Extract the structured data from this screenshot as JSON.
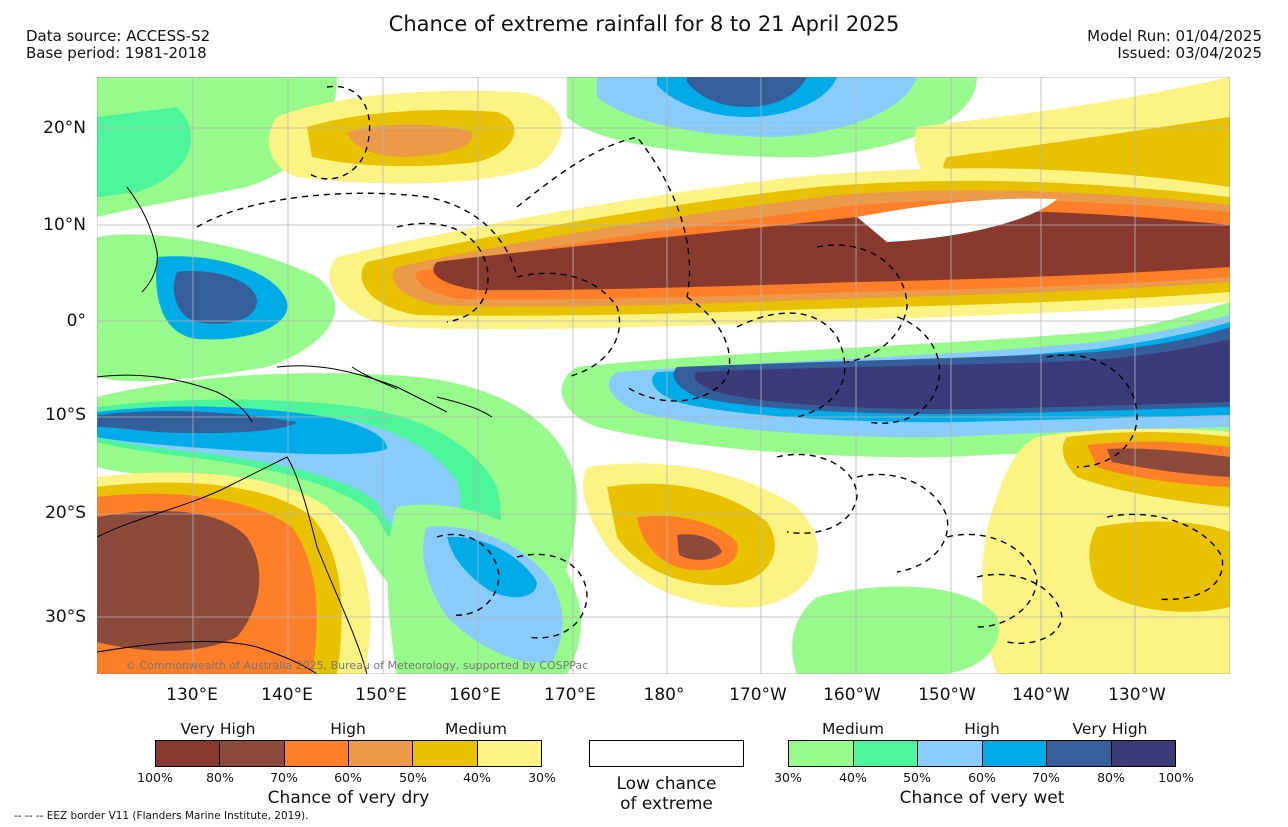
{
  "title": "Chance of extreme rainfall for 8 to 21 April 2025",
  "header_left": {
    "source": "Data source: ACCESS-S2",
    "base": "Base period: 1981-2018"
  },
  "header_right": {
    "run": "Model Run: 01/04/2025",
    "issued": "Issued: 03/04/2025"
  },
  "lat_labels": [
    "20°N",
    "10°N",
    "0°",
    "10°S",
    "20°S",
    "30°S"
  ],
  "lon_labels": [
    "130°E",
    "140°E",
    "150°E",
    "160°E",
    "170°E",
    "180°",
    "170°W",
    "160°W",
    "150°W",
    "140°W",
    "130°W"
  ],
  "copyright": "© Commonwealth of Australia 2025, Bureau of Meteorology, supported by COSPPac",
  "legend": {
    "dry": {
      "headings": [
        "Very High",
        "High",
        "Medium"
      ],
      "ticks": [
        "100%",
        "80%",
        "70%",
        "60%",
        "50%",
        "40%",
        "30%"
      ],
      "caption": "Chance of very dry",
      "colors": [
        "#893a2e",
        "#8c4a3b",
        "#fe7f28",
        "#eb9a4a",
        "#e8c200",
        "#fbf384"
      ]
    },
    "low": {
      "line1": "Low chance",
      "line2": "of extreme"
    },
    "wet": {
      "headings": [
        "Medium",
        "High",
        "Very High"
      ],
      "ticks": [
        "30%",
        "40%",
        "50%",
        "60%",
        "70%",
        "80%",
        "100%"
      ],
      "caption": "Chance of very wet",
      "colors": [
        "#97fb8b",
        "#4cf59a",
        "#89cbfa",
        "#00ace8",
        "#345f9b",
        "#3b3b7a"
      ]
    }
  },
  "footnote": "-- -- -- EEZ border V11 (Flanders Marine Institute, 2019)."
}
